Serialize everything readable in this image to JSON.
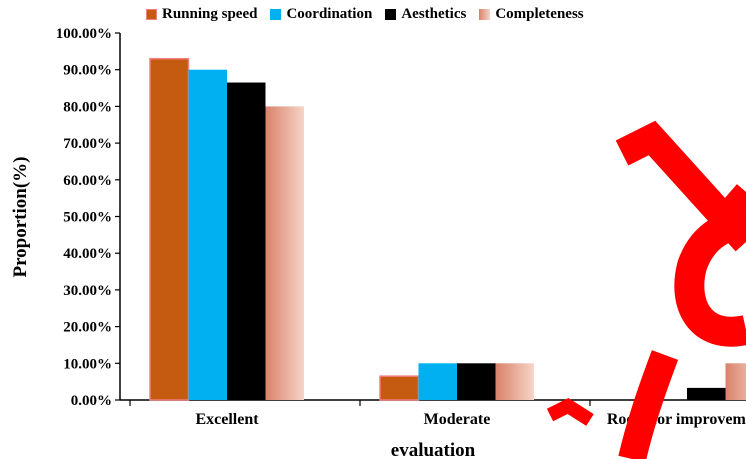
{
  "chart_data": {
    "type": "bar",
    "categories": [
      "Excellent",
      "Moderate",
      "Room for improvement"
    ],
    "series": [
      {
        "name": "Running speed",
        "values": [
          93.0,
          6.5,
          0.0
        ],
        "color": "#C55A11",
        "border": "#F08080"
      },
      {
        "name": "Coordination",
        "values": [
          90.0,
          10.0,
          0.0
        ],
        "color": "#00B0F0"
      },
      {
        "name": "Aesthetics",
        "values": [
          86.5,
          10.0,
          3.3
        ],
        "color": "#000000"
      },
      {
        "name": "Completeness",
        "values": [
          80.0,
          10.0,
          10.0
        ],
        "color": "#E8A084",
        "gradient": [
          "#D9826A",
          "#F6D5C8"
        ]
      }
    ],
    "yticks": [
      "0.00%",
      "10.00%",
      "20.00%",
      "30.00%",
      "40.00%",
      "50.00%",
      "60.00%",
      "70.00%",
      "80.00%",
      "90.00%",
      "100.00%"
    ],
    "ylim": [
      0,
      100
    ],
    "xlabel": "evaluation",
    "ylabel": "Proportion(%)",
    "legend_position": "top",
    "grid": false,
    "watermark_color": "#FF0000"
  }
}
